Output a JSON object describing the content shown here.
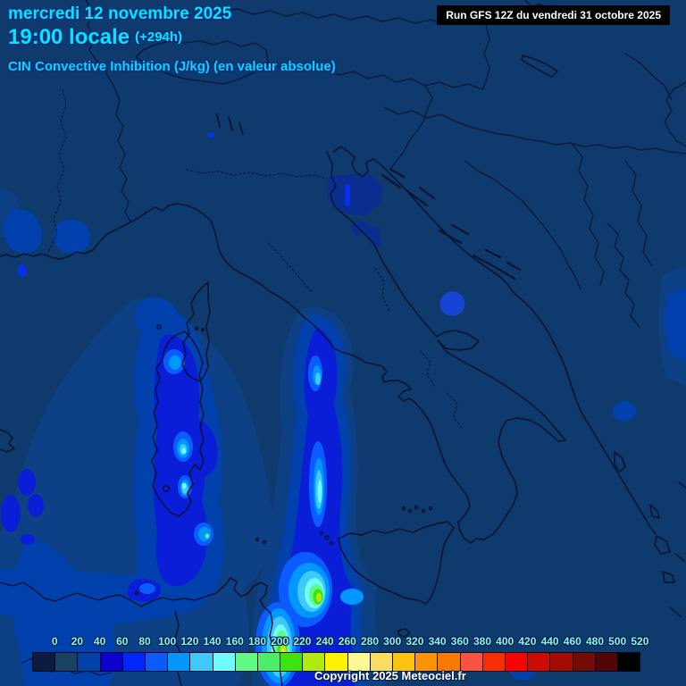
{
  "header": {
    "date": "mercredi 12 novembre 2025",
    "time": "19:00 locale",
    "offset": "(+294h)",
    "parameter": "CIN Convective Inhibition (J/kg) (en valeur absolue)",
    "run": "Run GFS 12Z du vendredi 31 octobre 2025"
  },
  "footer": {
    "copyright": "Copyright 2025 Meteociel.fr"
  },
  "legend": {
    "values": [
      "0",
      "20",
      "40",
      "60",
      "80",
      "100",
      "120",
      "140",
      "160",
      "180",
      "200",
      "220",
      "240",
      "260",
      "280",
      "300",
      "320",
      "340",
      "360",
      "380",
      "400",
      "420",
      "440",
      "460",
      "480",
      "500",
      "520"
    ],
    "colors": [
      "#0b1b42",
      "#1c4166",
      "#0042a8",
      "#0a00d0",
      "#0026ff",
      "#0a5cff",
      "#0098ff",
      "#3fc8f8",
      "#6dfcff",
      "#5ffa86",
      "#4aee67",
      "#3ce30e",
      "#b2ea10",
      "#fef200",
      "#fdfa96",
      "#fbdc62",
      "#fdc40e",
      "#fb9404",
      "#fa7a01",
      "#f95442",
      "#fb2d00",
      "#fa0200",
      "#cd0b02",
      "#a40c01",
      "#720c04",
      "#520505",
      "#000000"
    ]
  },
  "map": {
    "base_color": "#0e3a6e",
    "coast_color": "#02102a",
    "text_accent": "#00e6ff"
  }
}
